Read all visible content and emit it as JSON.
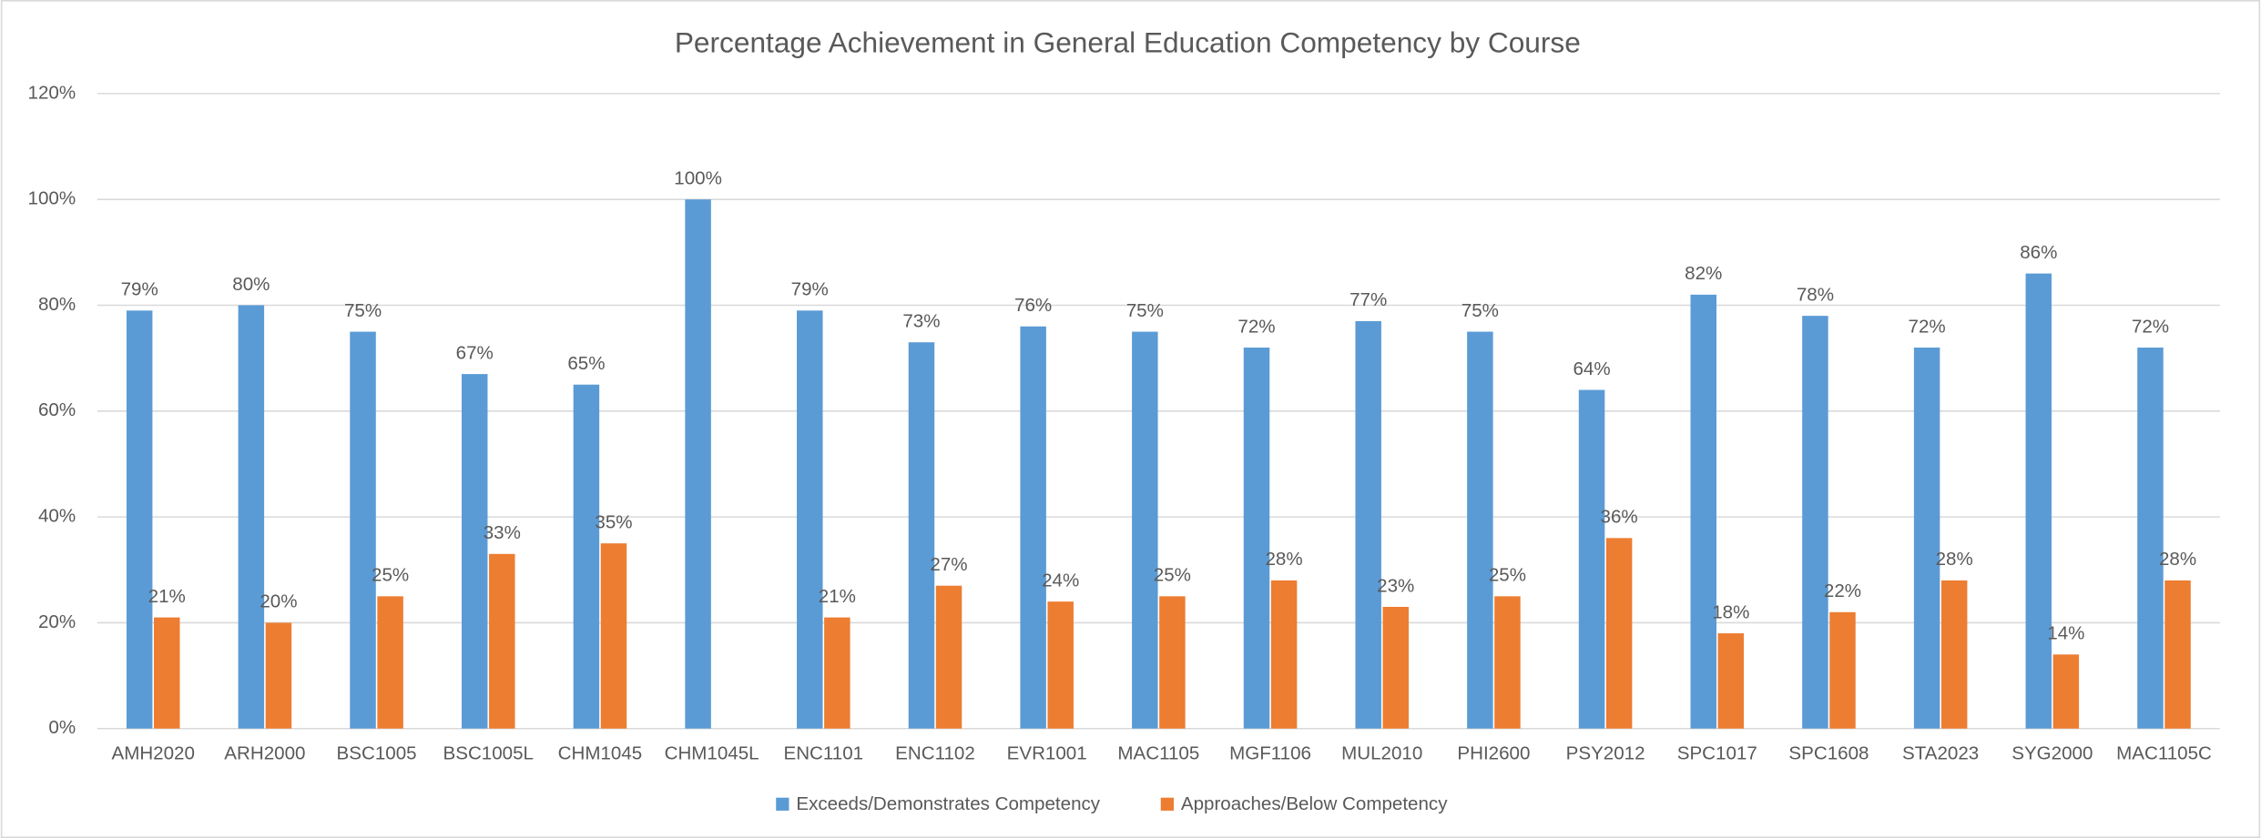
{
  "chart_data": {
    "type": "bar",
    "title": "Percentage Achievement in General Education Competency by Course",
    "categories": [
      "AMH2020",
      "ARH2000",
      "BSC1005",
      "BSC1005L",
      "CHM1045",
      "CHM1045L",
      "ENC1101",
      "ENC1102",
      "EVR1001",
      "MAC1105",
      "MGF1106",
      "MUL2010",
      "PHI2600",
      "PSY2012",
      "SPC1017",
      "SPC1608",
      "STA2023",
      "SYG2000",
      "MAC1105C"
    ],
    "series": [
      {
        "name": "Exceeds/Demonstrates Competency",
        "color": "#5b9bd5",
        "values": [
          79,
          80,
          75,
          67,
          65,
          100,
          79,
          73,
          76,
          75,
          72,
          77,
          75,
          64,
          82,
          78,
          72,
          86,
          72
        ],
        "value_labels": [
          "79%",
          "80%",
          "75%",
          "67%",
          "65%",
          "100%",
          "79%",
          "73%",
          "76%",
          "75%",
          "72%",
          "77%",
          "75%",
          "64%",
          "82%",
          "78%",
          "72%",
          "86%",
          "72%"
        ]
      },
      {
        "name": "Approaches/Below Competency",
        "color": "#ed7d31",
        "values": [
          21,
          20,
          25,
          33,
          35,
          null,
          21,
          27,
          24,
          25,
          28,
          23,
          25,
          36,
          18,
          22,
          28,
          14,
          28
        ],
        "value_labels": [
          "21%",
          "20%",
          "25%",
          "33%",
          "35%",
          null,
          "21%",
          "27%",
          "24%",
          "25%",
          "28%",
          "23%",
          "25%",
          "36%",
          "18%",
          "22%",
          "28%",
          "14%",
          "28%"
        ]
      }
    ],
    "ylim": [
      0,
      120
    ],
    "yticks": [
      {
        "value": 0,
        "label": "0%"
      },
      {
        "value": 20,
        "label": "20%"
      },
      {
        "value": 40,
        "label": "40%"
      },
      {
        "value": 60,
        "label": "60%"
      },
      {
        "value": 80,
        "label": "80%"
      },
      {
        "value": 100,
        "label": "100%"
      },
      {
        "value": 120,
        "label": "120%"
      }
    ],
    "grid": true,
    "legend": "bottom"
  }
}
